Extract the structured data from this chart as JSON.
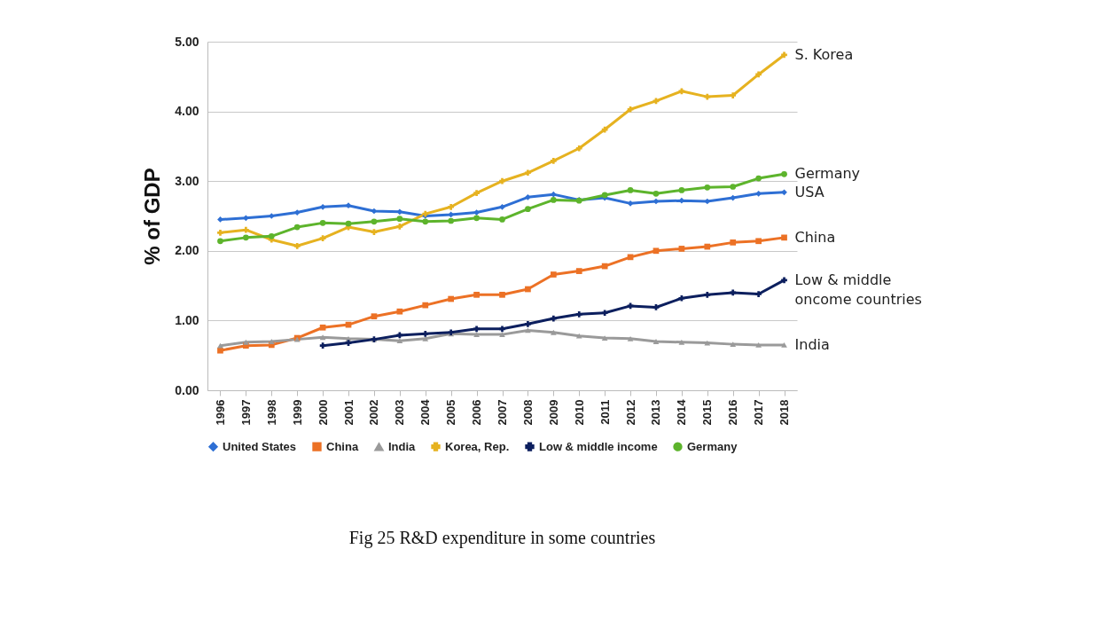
{
  "chart_data": {
    "type": "line",
    "title": "Fig 25  R&D expenditure in some countries",
    "ylabel": "% of GDP",
    "categories": [
      "1996",
      "1997",
      "1998",
      "1999",
      "2000",
      "2001",
      "2002",
      "2003",
      "2004",
      "2005",
      "2006",
      "2007",
      "2008",
      "2009",
      "2010",
      "2011",
      "2012",
      "2013",
      "2014",
      "2015",
      "2016",
      "2017",
      "2018"
    ],
    "ylim": [
      0,
      5
    ],
    "yticks": [
      {
        "value": 0,
        "label": "0.00"
      },
      {
        "value": 1,
        "label": "1.00"
      },
      {
        "value": 2,
        "label": "2.00"
      },
      {
        "value": 3,
        "label": "3.00"
      },
      {
        "value": 4,
        "label": "4.00"
      },
      {
        "value": 5,
        "label": "5.00"
      }
    ],
    "grid": "y",
    "legend": "bottom",
    "series": [
      {
        "name": "United States",
        "color": "#2e6fd4",
        "marker": "diamond",
        "values": [
          2.45,
          2.47,
          2.5,
          2.55,
          2.63,
          2.65,
          2.57,
          2.56,
          2.5,
          2.52,
          2.55,
          2.63,
          2.77,
          2.81,
          2.73,
          2.76,
          2.68,
          2.71,
          2.72,
          2.71,
          2.76,
          2.82,
          2.84
        ]
      },
      {
        "name": "China",
        "color": "#ec7125",
        "marker": "square",
        "values": [
          0.57,
          0.64,
          0.65,
          0.75,
          0.9,
          0.94,
          1.06,
          1.13,
          1.22,
          1.31,
          1.37,
          1.37,
          1.45,
          1.66,
          1.71,
          1.78,
          1.91,
          2.0,
          2.03,
          2.06,
          2.12,
          2.14,
          2.19
        ]
      },
      {
        "name": "India",
        "color": "#9a9a9a",
        "marker": "triangle",
        "values": [
          0.64,
          0.69,
          0.7,
          0.73,
          0.76,
          0.74,
          0.73,
          0.71,
          0.74,
          0.81,
          0.8,
          0.8,
          0.86,
          0.83,
          0.78,
          0.75,
          0.74,
          0.7,
          0.69,
          0.68,
          0.66,
          0.65,
          0.65
        ]
      },
      {
        "name": "Korea, Rep.",
        "color": "#e6b220",
        "marker": "cross",
        "values": [
          2.26,
          2.3,
          2.16,
          2.07,
          2.18,
          2.34,
          2.27,
          2.35,
          2.53,
          2.63,
          2.83,
          3.0,
          3.12,
          3.29,
          3.47,
          3.74,
          4.03,
          4.15,
          4.29,
          4.21,
          4.23,
          4.53,
          4.81
        ]
      },
      {
        "name": "Low & middle income",
        "color": "#0c1f5e",
        "marker": "cross",
        "values": [
          null,
          null,
          null,
          null,
          0.64,
          0.68,
          0.73,
          0.79,
          0.81,
          0.83,
          0.88,
          0.88,
          0.95,
          1.03,
          1.09,
          1.11,
          1.21,
          1.19,
          1.32,
          1.37,
          1.4,
          1.38,
          1.58
        ]
      },
      {
        "name": "Germany",
        "color": "#5db42c",
        "marker": "circle",
        "values": [
          2.14,
          2.19,
          2.21,
          2.34,
          2.4,
          2.39,
          2.42,
          2.46,
          2.42,
          2.43,
          2.47,
          2.45,
          2.6,
          2.73,
          2.72,
          2.8,
          2.87,
          2.82,
          2.87,
          2.91,
          2.92,
          3.04,
          3.1
        ]
      }
    ],
    "annotations": [
      {
        "text": "S. Korea",
        "x": "2018",
        "y": 4.81
      },
      {
        "text": "Germany",
        "x": "2018",
        "y": 3.1
      },
      {
        "text": "USA",
        "x": "2018",
        "y": 2.84
      },
      {
        "text": "China",
        "x": "2018",
        "y": 2.19
      },
      {
        "text": "Low & middle\noncome countries",
        "x": "2018",
        "y": 1.58
      },
      {
        "text": "India",
        "x": "2018",
        "y": 0.65
      }
    ]
  }
}
